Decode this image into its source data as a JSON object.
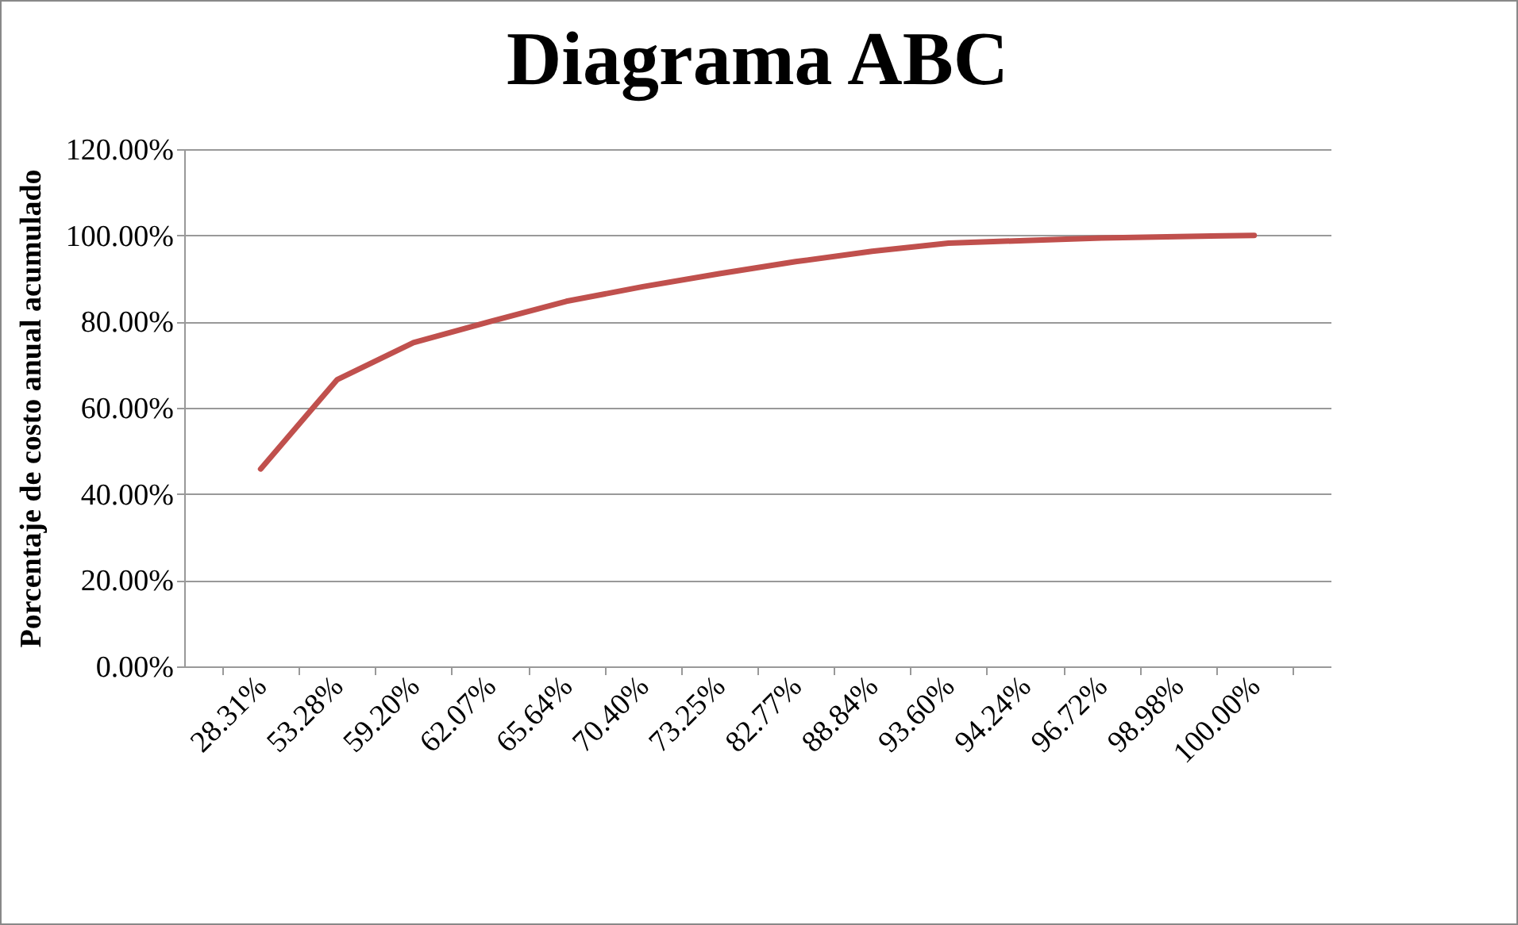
{
  "chart_data": {
    "type": "line",
    "title": "Diagrama ABC",
    "ylabel": "Porcentaje de costo anual acumulado",
    "categories": [
      "28.31%",
      "53.28%",
      "59.20%",
      "62.07%",
      "65.64%",
      "70.40%",
      "73.25%",
      "82.77%",
      "88.84%",
      "93.60%",
      "94.24%",
      "96.72%",
      "98.98%",
      "100.00%"
    ],
    "series": [
      {
        "color": "#c0504d",
        "values": [
          45.8,
          66.5,
          75.1,
          80.0,
          84.7,
          88.1,
          91.1,
          93.9,
          96.3,
          98.2,
          98.8,
          99.4,
          99.7,
          100
        ]
      }
    ],
    "ylim": [
      0,
      120
    ],
    "yticks": [
      {
        "value": 0,
        "label": "0.00%"
      },
      {
        "value": 20,
        "label": "20.00%"
      },
      {
        "value": 40,
        "label": "40.00%"
      },
      {
        "value": 60,
        "label": "60.00%"
      },
      {
        "value": 80,
        "label": "80.00%"
      },
      {
        "value": 100,
        "label": "100.00%"
      },
      {
        "value": 120,
        "label": "120.00%"
      }
    ],
    "grid": "y",
    "marker": "none",
    "line_style": "solid"
  }
}
